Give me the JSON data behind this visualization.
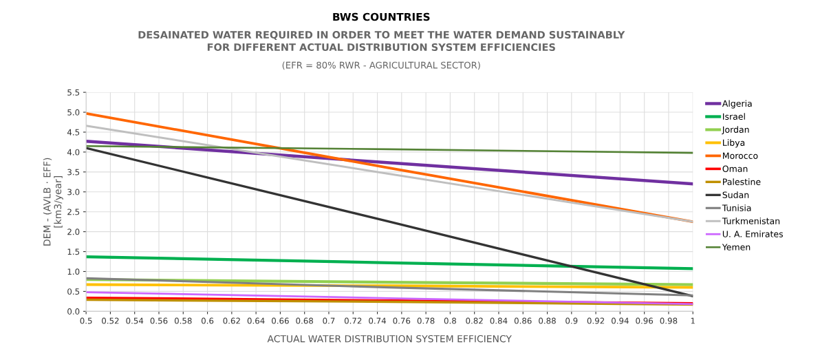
{
  "chart_data": {
    "type": "line",
    "title": "BWS COUNTRIES",
    "subtitle": "DESAINATED WATER REQUIRED IN ORDER TO MEET THE WATER DEMAND SUSTAINABLY\nFOR DIFFERENT ACTUAL DISTRIBUTION SYSTEM EFFICIENCIES",
    "annotations": [
      "(EFR = 80% RWR - AGRICULTURAL SECTOR)"
    ],
    "xlabel": "ACTUAL WATER DISTRIBUTION SYSTEM EFFICIENCY",
    "ylabel": "DEM - (AVLB · EFF)\n[km3/year]",
    "x": [
      0.5,
      0.75,
      1
    ],
    "series": [
      {
        "name": "Algeria",
        "color": "#7030a0",
        "values": [
          4.27,
          3.73,
          3.2
        ]
      },
      {
        "name": "Israel",
        "color": "#00b050",
        "values": [
          1.37,
          1.22,
          1.07
        ]
      },
      {
        "name": "Jordan",
        "color": "#92d050",
        "values": [
          0.8,
          0.73,
          0.67
        ]
      },
      {
        "name": "Libya",
        "color": "#ffc000",
        "values": [
          0.67,
          0.64,
          0.6
        ]
      },
      {
        "name": "Morocco",
        "color": "#ff6600",
        "values": [
          4.97,
          3.6,
          2.25
        ]
      },
      {
        "name": "Oman",
        "color": "#ff0000",
        "values": [
          0.34,
          0.27,
          0.2
        ]
      },
      {
        "name": "Palestine",
        "color": "#bf8f00",
        "values": [
          0.29,
          0.24,
          0.17
        ]
      },
      {
        "name": "Sudan",
        "color": "#333333",
        "values": [
          4.1,
          2.25,
          0.38
        ]
      },
      {
        "name": "Tunisia",
        "color": "#808080",
        "values": [
          0.83,
          0.6,
          0.4
        ]
      },
      {
        "name": "Turkmenistan",
        "color": "#bfbfbf",
        "values": [
          4.66,
          3.45,
          2.25
        ]
      },
      {
        "name": "U. A. Emirates",
        "color": "#cc66ff",
        "values": [
          0.48,
          0.33,
          0.18
        ]
      },
      {
        "name": "Yemen",
        "color": "#548235",
        "values": [
          4.15,
          4.07,
          3.98
        ]
      }
    ],
    "xlim": [
      0.5,
      1
    ],
    "xticks": [
      0.5,
      0.52,
      0.54,
      0.56,
      0.58,
      0.6,
      0.62,
      0.64,
      0.66,
      0.68,
      0.7,
      0.72,
      0.74,
      0.76,
      0.78,
      0.8,
      0.82,
      0.84,
      0.86,
      0.88,
      0.9,
      0.92,
      0.94,
      0.96,
      0.98,
      1
    ],
    "ylim": [
      0,
      5.5
    ],
    "yticks": [
      {
        "value": 0,
        "label": "0.0"
      },
      0.5,
      {
        "value": 1,
        "label": "1.0"
      },
      1.5,
      {
        "value": 2,
        "label": "2.0"
      },
      2.5,
      {
        "value": 3,
        "label": "3.0"
      },
      3.5,
      {
        "value": 4,
        "label": "4.0"
      },
      4.5,
      {
        "value": 5,
        "label": "5.0"
      },
      5.5
    ],
    "grid": true,
    "legend": "right",
    "marker": "none",
    "line_style": "solid"
  }
}
